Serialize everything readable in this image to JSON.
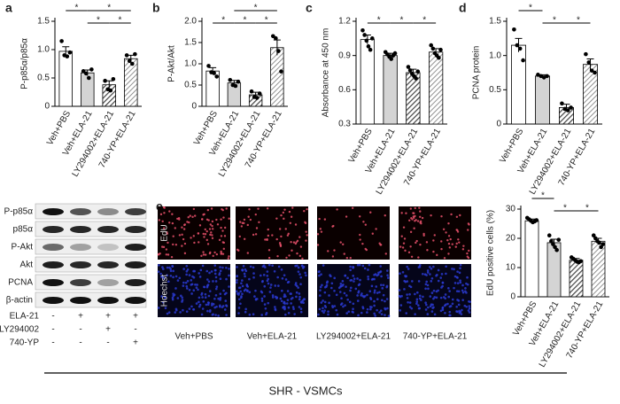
{
  "chart_data": [
    {
      "type": "bar",
      "letter": "a",
      "y_label": "P-p85α/p85α",
      "categories": [
        "Veh+PBS",
        "Veh+ELA-21",
        "LY294002+ELA-21",
        "740-YP+ELA-21"
      ],
      "values": [
        0.97,
        0.59,
        0.38,
        0.84
      ],
      "errors": [
        0.08,
        0.05,
        0.07,
        0.06
      ],
      "points": [
        [
          1.15,
          0.9,
          0.88,
          0.95
        ],
        [
          0.62,
          0.58,
          0.5,
          0.65
        ],
        [
          0.45,
          0.3,
          0.28,
          0.48
        ],
        [
          0.9,
          0.8,
          0.75,
          0.92
        ]
      ],
      "colors": [
        "#ffffff",
        "#d4d4d4",
        "#444444",
        "#777777"
      ],
      "hatch": [
        false,
        false,
        true,
        true
      ],
      "ylim": [
        0,
        1.5
      ],
      "yticks": [
        0,
        0.5,
        {
          "value": 1,
          "label": "1.0"
        },
        1.5
      ],
      "significance": [
        "*",
        "*",
        "*",
        "*"
      ]
    },
    {
      "type": "bar",
      "letter": "b",
      "y_label": "P-Akt/Akt",
      "categories": [
        "Veh+PBS",
        "Veh+ELA-21",
        "LY294002+ELA-21",
        "740-YP+ELA-21"
      ],
      "values": [
        0.83,
        0.55,
        0.27,
        1.38
      ],
      "errors": [
        0.08,
        0.06,
        0.06,
        0.18
      ],
      "points": [
        [
          0.95,
          0.8,
          0.78,
          0.7
        ],
        [
          0.62,
          0.5,
          0.48,
          0.58
        ],
        [
          0.35,
          0.22,
          0.2,
          0.3
        ],
        [
          1.65,
          1.6,
          1.3,
          0.82
        ]
      ],
      "colors": [
        "#ffffff",
        "#d4d4d4",
        "#444444",
        "#777777"
      ],
      "hatch": [
        false,
        false,
        true,
        true
      ],
      "ylim": [
        0,
        2
      ],
      "yticks": [
        0,
        0.5,
        {
          "value": 1,
          "label": "1.0"
        },
        1.5,
        {
          "value": 2,
          "label": "2.0"
        }
      ],
      "significance": [
        "*",
        "*",
        "*",
        "*"
      ]
    },
    {
      "type": "bar",
      "letter": "c",
      "y_label": "Absorbance at 450 nm",
      "categories": [
        "Veh+PBS",
        "Veh+ELA-21",
        "LY294002+ELA-21",
        "740-YP+ELA-21"
      ],
      "values": [
        1.04,
        0.9,
        0.75,
        0.93
      ],
      "errors": [
        0.04,
        0.02,
        0.03,
        0.03
      ],
      "points": [
        [
          1.12,
          1.08,
          1.03,
          0.98,
          0.95,
          1.05
        ],
        [
          0.93,
          0.91,
          0.89,
          0.87,
          0.9,
          0.92
        ],
        [
          0.8,
          0.77,
          0.74,
          0.72,
          0.7,
          0.76
        ],
        [
          0.99,
          0.96,
          0.92,
          0.9,
          0.88,
          0.95
        ]
      ],
      "colors": [
        "#ffffff",
        "#d4d4d4",
        "#444444",
        "#777777"
      ],
      "hatch": [
        false,
        false,
        true,
        true
      ],
      "ylim": [
        0.3,
        1.2
      ],
      "yticks": [
        0.3,
        0.6,
        0.9,
        1.2
      ],
      "significance": [
        "*",
        "*",
        "*"
      ]
    },
    {
      "type": "bar",
      "letter": "d",
      "y_label": "PCNA protein",
      "categories": [
        "Veh+PBS",
        "Veh+ELA-21",
        "LY294002+ELA-21",
        "740-YP+ELA-21"
      ],
      "values": [
        1.15,
        0.7,
        0.24,
        0.87
      ],
      "errors": [
        0.1,
        0.02,
        0.05,
        0.08
      ],
      "points": [
        [
          1.38,
          1.15,
          1.1,
          0.93
        ],
        [
          0.72,
          0.7,
          0.68,
          0.7
        ],
        [
          0.3,
          0.22,
          0.2,
          0.24
        ],
        [
          1.02,
          0.9,
          0.78,
          0.75
        ]
      ],
      "colors": [
        "#ffffff",
        "#d4d4d4",
        "#444444",
        "#777777"
      ],
      "hatch": [
        false,
        false,
        true,
        true
      ],
      "ylim": [
        0,
        1.5
      ],
      "yticks": [
        0,
        0.5,
        {
          "value": 1,
          "label": "1.0"
        },
        1.5
      ],
      "significance": [
        "*",
        "*",
        "*"
      ]
    },
    {
      "type": "bar",
      "letter": "e",
      "y_label": "EdU positive cells (%)",
      "categories": [
        "Veh+PBS",
        "Veh+ELA-21",
        "LY294002+ELA-21",
        "740-YP+ELA-21"
      ],
      "values": [
        26,
        18.5,
        12.5,
        19
      ],
      "errors": [
        0.6,
        1.2,
        0.6,
        1
      ],
      "points": [
        [
          27,
          26.5,
          26,
          25.5,
          25.8,
          26.2
        ],
        [
          21,
          19,
          18,
          17,
          16,
          19.5
        ],
        [
          13.5,
          13,
          12.5,
          12,
          11.8,
          12.2
        ],
        [
          21,
          20,
          19,
          18.5,
          17,
          18
        ]
      ],
      "colors": [
        "#ffffff",
        "#d4d4d4",
        "#444444",
        "#777777"
      ],
      "hatch": [
        false,
        false,
        true,
        true
      ],
      "ylim": [
        0,
        30
      ],
      "yticks": [
        0,
        10,
        20,
        30
      ],
      "significance": [
        "*",
        "*",
        "*"
      ]
    }
  ],
  "blot": {
    "rows": [
      "P-p85α",
      "p85α",
      "P-Akt",
      "Akt",
      "PCNA",
      "β-actin"
    ],
    "treatments": [
      {
        "name": "ELA-21",
        "signs": [
          "-",
          "+",
          "+",
          "+"
        ]
      },
      {
        "name": "LY294002",
        "signs": [
          "-",
          "-",
          "+",
          "-"
        ]
      },
      {
        "name": "740-YP",
        "signs": [
          "-",
          "-",
          "-",
          "+"
        ]
      }
    ]
  },
  "images": {
    "rows": [
      "EdU",
      "Hoechst"
    ],
    "columns": [
      "Veh+PBS",
      "Veh+ELA-21",
      "LY294002+ELA-21",
      "740-YP+ELA-21"
    ]
  },
  "footer": "SHR - VSMCs"
}
